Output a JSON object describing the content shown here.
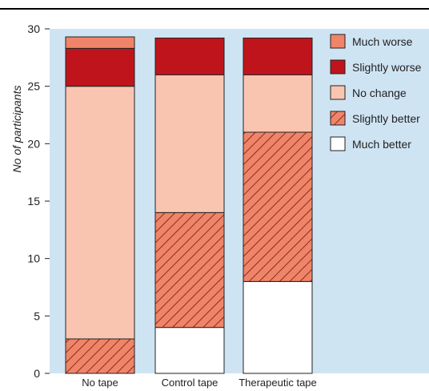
{
  "chart_data": {
    "type": "bar",
    "stacked": true,
    "categories": [
      "No tape",
      "Control tape",
      "Therapeutic tape"
    ],
    "ylabel": "No of participants",
    "xlabel": "",
    "ylim": [
      0,
      30
    ],
    "yticks": [
      0,
      5,
      10,
      15,
      20,
      25,
      30
    ],
    "legend_position": "top-right",
    "series": [
      {
        "name": "Much better",
        "values": [
          0,
          4,
          8
        ],
        "color": "#ffffff",
        "hatched": false
      },
      {
        "name": "Slightly better",
        "values": [
          3,
          10,
          13
        ],
        "color": "#f08468",
        "hatched": true
      },
      {
        "name": "No change",
        "values": [
          22,
          12,
          5
        ],
        "color": "#f9c5b1",
        "hatched": false
      },
      {
        "name": "Slightly worse",
        "values": [
          3.3,
          3.2,
          3.2
        ],
        "color": "#c0141c",
        "hatched": false
      },
      {
        "name": "Much worse",
        "values": [
          1,
          0,
          0
        ],
        "color": "#f08468",
        "hatched": false
      }
    ],
    "legend_order": [
      "Much worse",
      "Slightly worse",
      "No change",
      "Slightly better",
      "Much better"
    ],
    "plot_background": "#cfe4f3"
  }
}
